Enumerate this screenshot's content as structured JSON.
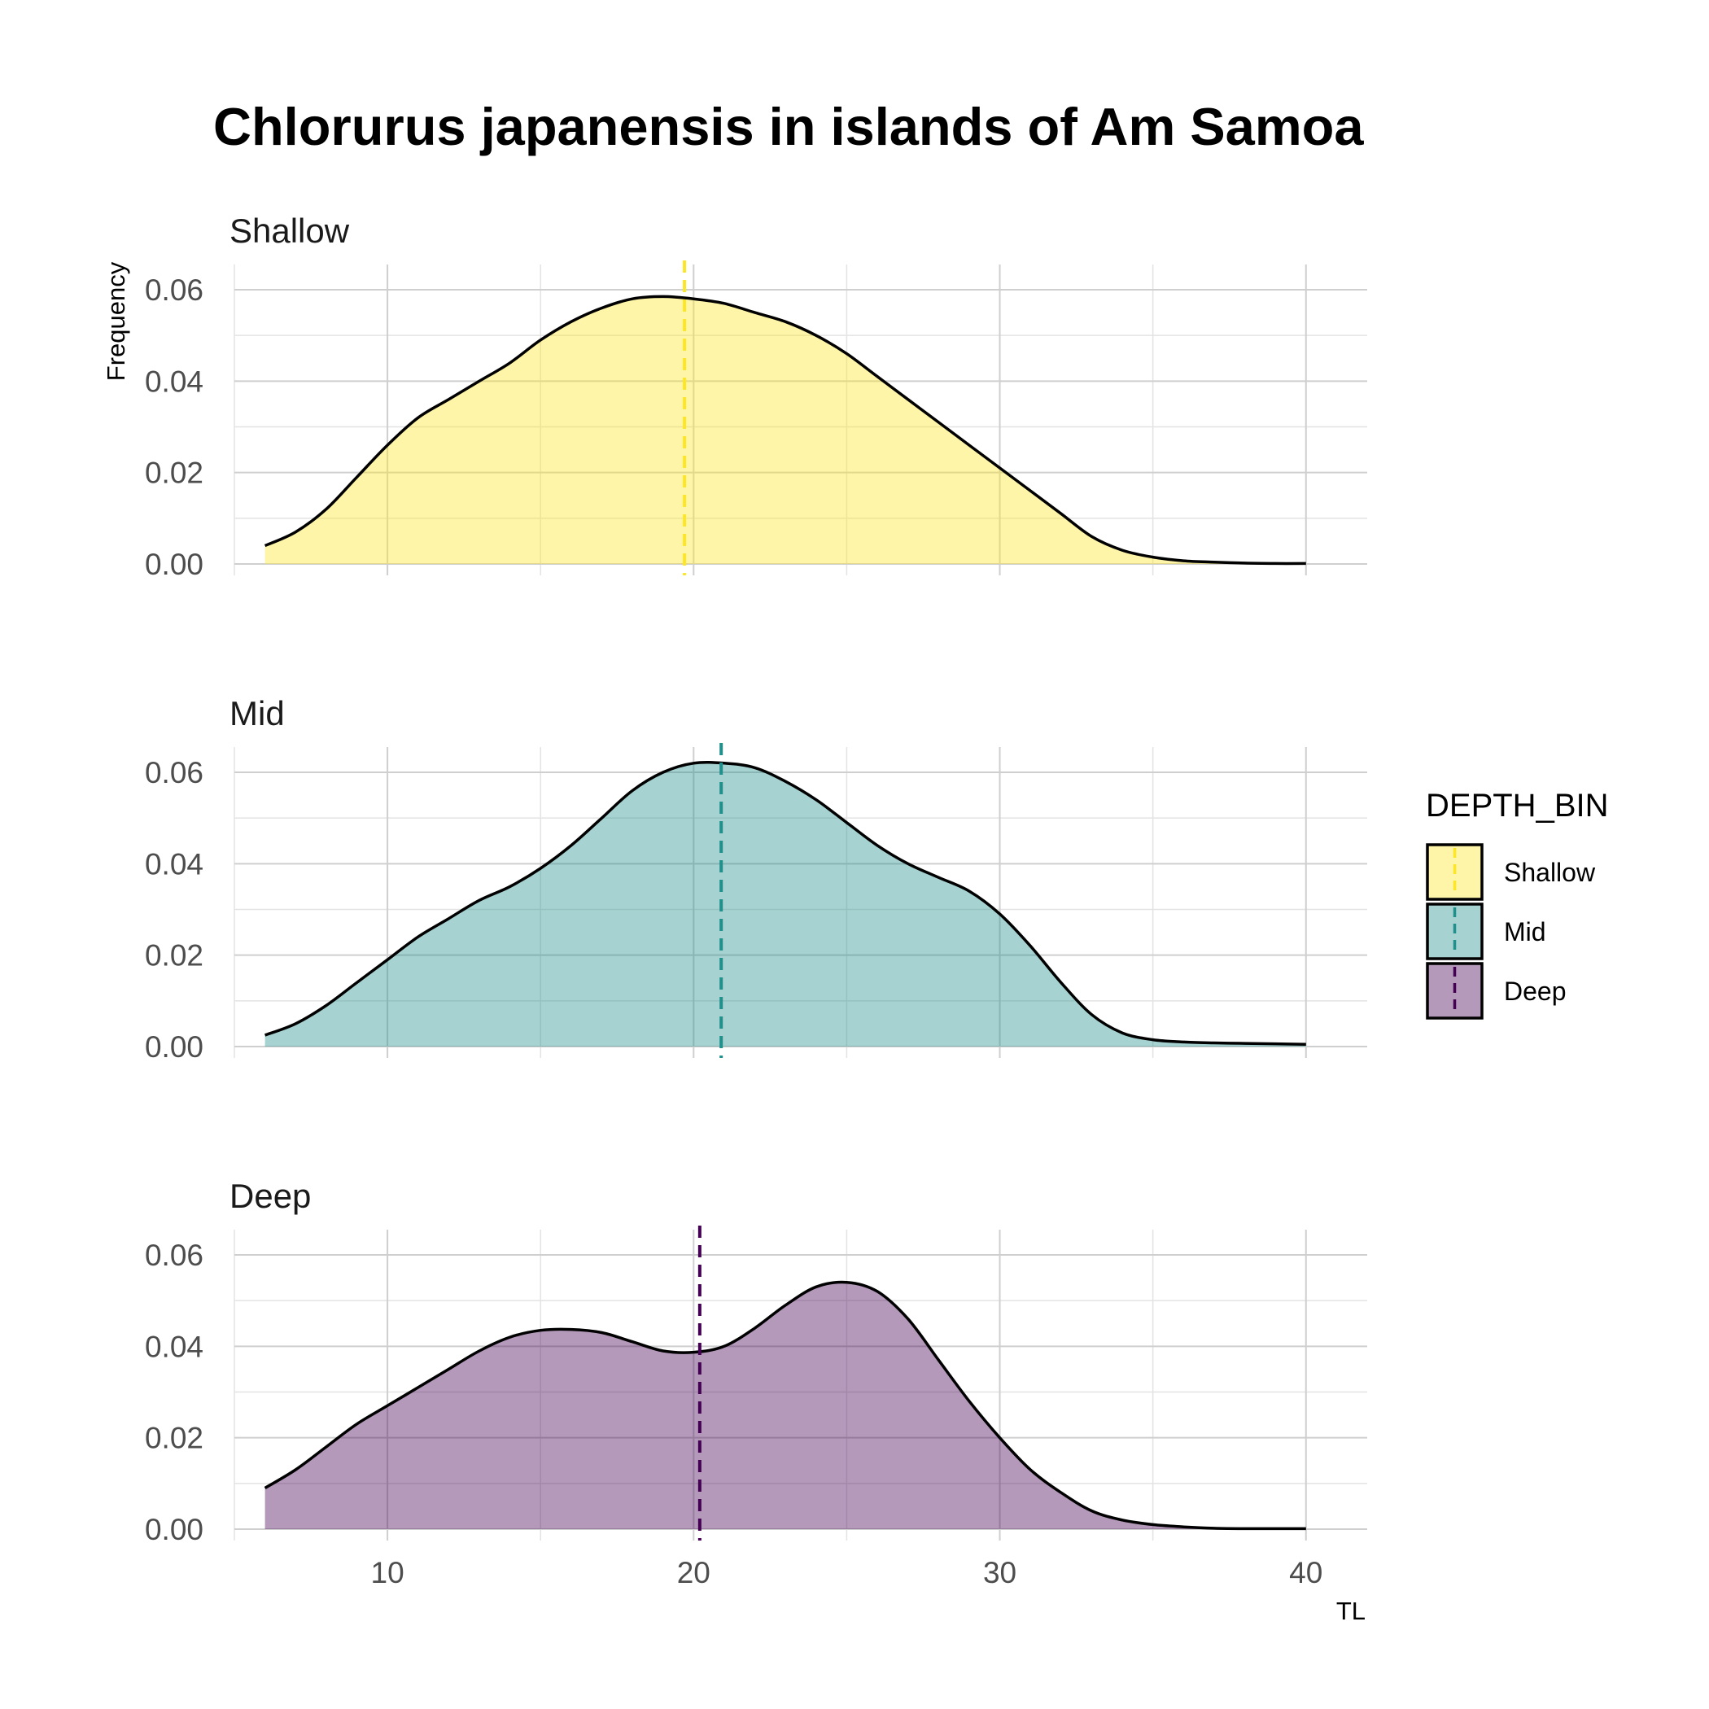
{
  "chart_data": {
    "type": "area",
    "title": "Chlorurus japanensis in islands of Am Samoa",
    "xlabel": "TL",
    "ylabel": "Frequency",
    "xlim": [
      5,
      42
    ],
    "ylim": [
      0,
      0.065
    ],
    "x_ticks": [
      10,
      20,
      30,
      40
    ],
    "y_ticks": [
      0.0,
      0.02,
      0.04,
      0.06
    ],
    "y_tick_labels": [
      "0.00",
      "0.02",
      "0.04",
      "0.06"
    ],
    "x_tick_labels": [
      "10",
      "20",
      "30",
      "40"
    ],
    "grid": true,
    "legend": {
      "title": "DEPTH_BIN",
      "position": "right",
      "entries": [
        "Shallow",
        "Mid",
        "Deep"
      ]
    },
    "panels": [
      {
        "name": "Shallow",
        "fill_color": "#FDE725",
        "line_color": "#FDE725",
        "mean_line_x": 19.7,
        "x": [
          6,
          7,
          8,
          9,
          10,
          11,
          12,
          13,
          14,
          15,
          16,
          17,
          18,
          19,
          20,
          21,
          22,
          23,
          24,
          25,
          26,
          27,
          28,
          29,
          30,
          31,
          32,
          33,
          34,
          35,
          36,
          37,
          38,
          39,
          40
        ],
        "y": [
          0.004,
          0.007,
          0.012,
          0.019,
          0.026,
          0.032,
          0.036,
          0.04,
          0.044,
          0.049,
          0.053,
          0.056,
          0.058,
          0.0585,
          0.058,
          0.057,
          0.055,
          0.053,
          0.05,
          0.046,
          0.041,
          0.036,
          0.031,
          0.026,
          0.021,
          0.016,
          0.011,
          0.006,
          0.003,
          0.0015,
          0.0007,
          0.0004,
          0.0002,
          0.0001,
          0.0001
        ]
      },
      {
        "name": "Mid",
        "fill_color": "#21908C",
        "line_color": "#21908C",
        "mean_line_x": 20.9,
        "x": [
          6,
          7,
          8,
          9,
          10,
          11,
          12,
          13,
          14,
          15,
          16,
          17,
          18,
          19,
          20,
          21,
          22,
          23,
          24,
          25,
          26,
          27,
          28,
          29,
          30,
          31,
          32,
          33,
          34,
          35,
          36,
          37,
          38,
          39,
          40
        ],
        "y": [
          0.0025,
          0.005,
          0.009,
          0.014,
          0.019,
          0.024,
          0.028,
          0.032,
          0.035,
          0.039,
          0.044,
          0.05,
          0.056,
          0.06,
          0.062,
          0.062,
          0.061,
          0.058,
          0.054,
          0.049,
          0.044,
          0.04,
          0.037,
          0.034,
          0.029,
          0.022,
          0.014,
          0.007,
          0.003,
          0.0015,
          0.001,
          0.0008,
          0.0007,
          0.0006,
          0.0005
        ]
      },
      {
        "name": "Deep",
        "fill_color": "#440154",
        "line_color": "#440154",
        "mean_line_x": 20.2,
        "x": [
          6,
          7,
          8,
          9,
          10,
          11,
          12,
          13,
          14,
          15,
          16,
          17,
          18,
          19,
          20,
          21,
          22,
          23,
          24,
          25,
          26,
          27,
          28,
          29,
          30,
          31,
          32,
          33,
          34,
          35,
          36,
          37,
          38,
          39,
          40
        ],
        "y": [
          0.009,
          0.013,
          0.018,
          0.023,
          0.027,
          0.031,
          0.035,
          0.039,
          0.042,
          0.0435,
          0.0437,
          0.043,
          0.041,
          0.039,
          0.0387,
          0.04,
          0.044,
          0.049,
          0.053,
          0.054,
          0.052,
          0.046,
          0.037,
          0.028,
          0.02,
          0.013,
          0.008,
          0.004,
          0.002,
          0.001,
          0.0005,
          0.0002,
          0.0001,
          0.0001,
          0.0001
        ]
      }
    ]
  }
}
